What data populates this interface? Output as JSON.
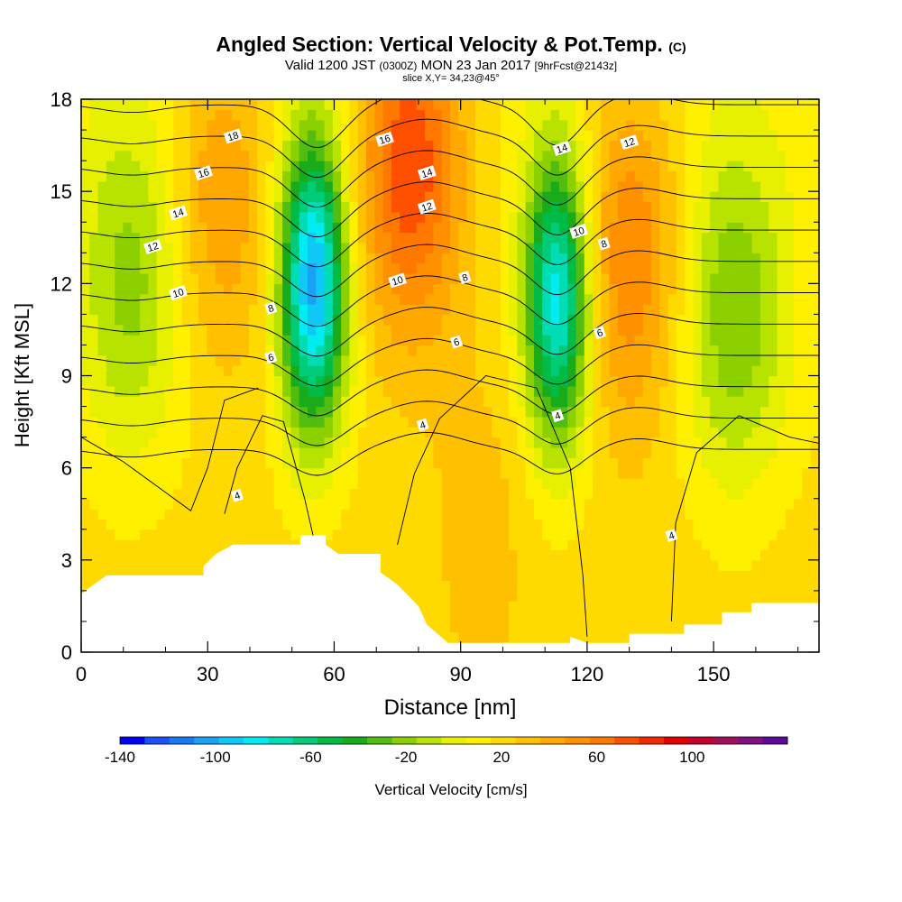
{
  "title": "Angled Section: Vertical Velocity & Pot.Temp.",
  "title_unit": "(C)",
  "subtitle_main": "Valid 1200 JST",
  "subtitle_z": "(0300Z)",
  "subtitle_date": "MON 23 Jan 2017",
  "subtitle_fcst": "[9hrFcst@2143z]",
  "slice_label": "slice X,Y= 34,23@45°",
  "chart_data": {
    "type": "heatmap",
    "xlabel": "Distance [nm]",
    "ylabel": "Height [Kft MSL]",
    "xlim": [
      0,
      175
    ],
    "ylim": [
      0,
      18
    ],
    "x_ticks": [
      0,
      30,
      60,
      90,
      120,
      150
    ],
    "y_ticks": [
      0,
      3,
      6,
      9,
      12,
      15,
      18
    ],
    "colorbar": {
      "label": "Vertical Velocity [cm/s]",
      "tick_labels": [
        "-140",
        "-100",
        "-60",
        "-20",
        "20",
        "60",
        "100"
      ],
      "tick_values": [
        -140,
        -100,
        -60,
        -20,
        20,
        60,
        100
      ],
      "range": [
        -140,
        140
      ],
      "step": 10,
      "colors": [
        "#0000f0",
        "#1a50f5",
        "#1b78f5",
        "#1aa0f5",
        "#10c8f5",
        "#00ecf0",
        "#00dcb4",
        "#00cc78",
        "#00bb45",
        "#1aab1a",
        "#50bd10",
        "#8cd000",
        "#b8e200",
        "#e6f000",
        "#fff000",
        "#ffda00",
        "#ffc000",
        "#ffa800",
        "#ff9000",
        "#ff7800",
        "#ff5000",
        "#f02800",
        "#e00000",
        "#c40030",
        "#a0105a",
        "#801080",
        "#5a0a96"
      ]
    },
    "velocity_features": [
      {
        "x": 55,
        "z": 12,
        "w": -115
      },
      {
        "x": 113,
        "z": 11.5,
        "w": -100
      },
      {
        "x": 78,
        "z": 16,
        "w": 60
      },
      {
        "x": 33,
        "z": 15,
        "w": 30
      },
      {
        "x": 130,
        "z": 13,
        "w": 40
      },
      {
        "x": 155,
        "z": 11,
        "w": -40
      },
      {
        "x": 12,
        "z": 12,
        "w": -35
      },
      {
        "x": 95,
        "z": 5,
        "w": 10
      }
    ],
    "contour_labels": [
      {
        "text": "18",
        "x": 36,
        "z": 16.8
      },
      {
        "text": "16",
        "x": 29,
        "z": 15.6
      },
      {
        "text": "14",
        "x": 23,
        "z": 14.3
      },
      {
        "text": "12",
        "x": 17,
        "z": 13.2
      },
      {
        "text": "10",
        "x": 23,
        "z": 11.7
      },
      {
        "text": "8",
        "x": 45,
        "z": 11.2
      },
      {
        "text": "6",
        "x": 45,
        "z": 9.6
      },
      {
        "text": "4",
        "x": 37,
        "z": 5.1
      },
      {
        "text": "16",
        "x": 72,
        "z": 16.7
      },
      {
        "text": "14",
        "x": 82,
        "z": 15.6
      },
      {
        "text": "12",
        "x": 82,
        "z": 14.5
      },
      {
        "text": "10",
        "x": 75,
        "z": 12.1
      },
      {
        "text": "8",
        "x": 91,
        "z": 12.2
      },
      {
        "text": "6",
        "x": 89,
        "z": 10.1
      },
      {
        "text": "4",
        "x": 81,
        "z": 7.4
      },
      {
        "text": "14",
        "x": 114,
        "z": 16.4
      },
      {
        "text": "12",
        "x": 130,
        "z": 16.6
      },
      {
        "text": "10",
        "x": 118,
        "z": 13.7
      },
      {
        "text": "8",
        "x": 124,
        "z": 13.3
      },
      {
        "text": "6",
        "x": 123,
        "z": 10.4
      },
      {
        "text": "4",
        "x": 113,
        "z": 7.7
      },
      {
        "text": "4",
        "x": 140,
        "z": 3.8
      }
    ]
  }
}
